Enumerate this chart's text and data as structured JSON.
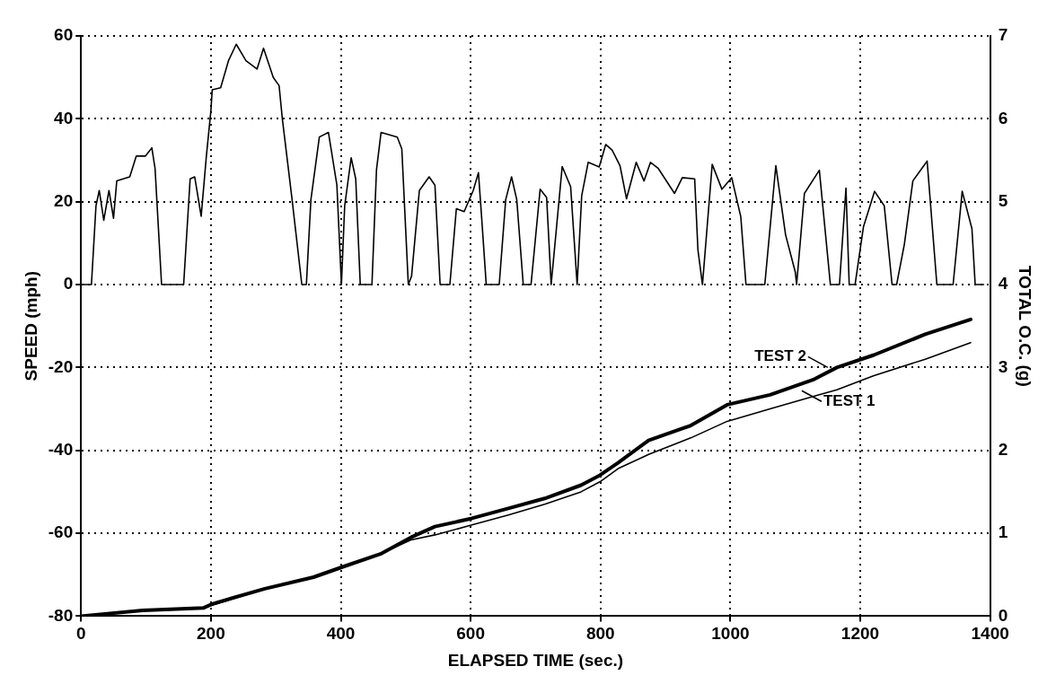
{
  "chart_data": {
    "type": "line",
    "xlabel": "ELAPSED TIME (sec.)",
    "ylabel": "SPEED (mph)",
    "y2label": "TOTAL O.C. (g)",
    "xlim": [
      0,
      1400
    ],
    "xticks": [
      0,
      200,
      400,
      600,
      800,
      1000,
      1200,
      1400
    ],
    "ylim": [
      -80,
      60
    ],
    "yticks": [
      -80,
      -60,
      -40,
      -20,
      0,
      20,
      40,
      60
    ],
    "y2lim": [
      0,
      7
    ],
    "y2ticks": [
      0,
      1,
      2,
      3,
      4,
      5,
      6,
      7
    ],
    "grid": true,
    "legend": false,
    "marker": "none",
    "line_style": "solid",
    "series": [
      {
        "color": "#000000",
        "x": [
          0,
          16,
          23,
          28,
          35,
          43,
          50,
          55,
          75,
          85,
          99,
          109,
          114,
          124,
          158,
          168,
          175,
          185,
          193,
          200,
          202,
          215,
          227,
          239,
          254,
          271,
          281,
          296,
          305,
          310,
          325,
          340,
          347,
          354,
          367,
          381,
          394,
          401,
          406,
          416,
          423,
          430,
          448,
          455,
          462,
          487,
          494,
          504,
          509,
          521,
          536,
          545,
          553,
          568,
          578,
          590,
          604,
          612,
          617,
          624,
          644,
          654,
          663,
          671,
          681,
          693,
          707,
          717,
          724,
          741,
          754,
          764,
          771,
          781,
          798,
          808,
          818,
          830,
          840,
          855,
          867,
          877,
          889,
          914,
          926,
          945,
          950,
          957,
          972,
          987,
          1002,
          1016,
          1024,
          1053,
          1070,
          1085,
          1100,
          1102,
          1114,
          1137,
          1154,
          1168,
          1178,
          1183,
          1192,
          1205,
          1222,
          1237,
          1249,
          1256,
          1268,
          1281,
          1303,
          1318,
          1343,
          1357,
          1372,
          1377,
          1390
        ],
        "values": [
          0,
          0,
          19,
          22.7,
          15.5,
          22.7,
          16,
          25,
          26,
          31,
          31,
          33,
          28,
          0,
          0,
          25.5,
          26,
          16.5,
          31,
          42,
          47,
          47.5,
          54,
          58,
          54,
          52,
          57,
          50,
          48,
          40,
          20.5,
          0,
          0,
          20.5,
          35.6,
          36.7,
          24,
          0,
          19,
          30.6,
          25.5,
          0,
          0,
          27.7,
          36.7,
          35.6,
          32.7,
          0,
          2,
          22.7,
          26,
          24,
          0,
          0,
          18.3,
          17.6,
          22.7,
          27,
          16,
          0,
          0,
          20.5,
          26,
          20.5,
          0,
          0,
          23,
          21,
          0,
          28.5,
          23.6,
          0,
          21.4,
          29.5,
          28.4,
          33.8,
          32.4,
          28.7,
          20.7,
          29.5,
          25,
          29.5,
          28,
          22,
          25.8,
          25.5,
          8.4,
          0,
          29,
          23,
          25.8,
          16.4,
          0,
          0,
          28.7,
          12,
          3,
          0,
          22,
          27.6,
          0,
          0,
          23.3,
          0,
          0,
          14,
          22.5,
          19,
          0,
          0,
          9.8,
          25,
          29.8,
          0,
          0,
          22.5,
          13.5,
          0,
          0
        ]
      },
      {
        "color": "#000000",
        "axis": "y2",
        "x": [
          0,
          95,
          189,
          283,
          358,
          405,
          461,
          508,
          545,
          602,
          658,
          714,
          770,
          799,
          827,
          874,
          939,
          995,
          1061,
          1127,
          1164,
          1221,
          1300,
          1370
        ],
        "values": [
          0,
          0.07,
          0.1,
          0.33,
          0.47,
          0.6,
          0.75,
          0.92,
          0.98,
          1.1,
          1.22,
          1.35,
          1.5,
          1.62,
          1.78,
          1.95,
          2.15,
          2.35,
          2.5,
          2.65,
          2.73,
          2.9,
          3.1,
          3.3
        ]
      },
      {
        "color": "#000000",
        "axis": "y2",
        "x": [
          0,
          95,
          189,
          203,
          283,
          358,
          405,
          461,
          508,
          545,
          602,
          658,
          714,
          770,
          799,
          827,
          874,
          939,
          995,
          1061,
          1127,
          1164,
          1221,
          1300,
          1370
        ],
        "values": [
          0,
          0.07,
          0.1,
          0.15,
          0.33,
          0.47,
          0.6,
          0.75,
          0.95,
          1.08,
          1.18,
          1.3,
          1.42,
          1.58,
          1.7,
          1.85,
          2.12,
          2.3,
          2.55,
          2.67,
          2.85,
          3.0,
          3.15,
          3.4,
          3.58
        ]
      }
    ],
    "annotations": [
      {
        "text": "TEST 2",
        "x": 1150,
        "y": -20
      },
      {
        "text": "TEST 1",
        "x": 1110,
        "y": -25.6
      }
    ]
  }
}
